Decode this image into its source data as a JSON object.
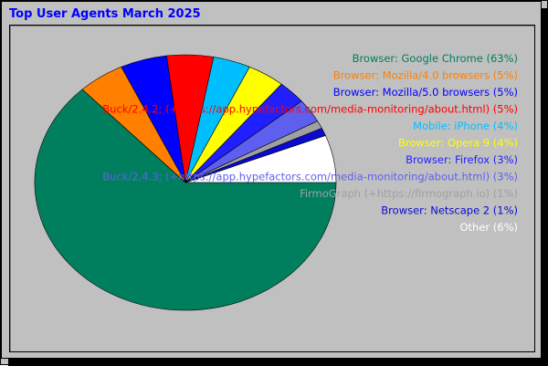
{
  "chart_data": {
    "type": "pie",
    "title": "Top User Agents March 2025",
    "slices": [
      {
        "label": "Browser: Google Chrome",
        "value": 63,
        "display": "Browser: Google Chrome (63%)",
        "color": "#007f5f"
      },
      {
        "label": "Browser: Mozilla/4.0 browsers",
        "value": 5,
        "display": "Browser: Mozilla/4.0 browsers (5%)",
        "color": "#ff7f00"
      },
      {
        "label": "Browser: Mozilla/5.0 browsers",
        "value": 5,
        "display": "Browser: Mozilla/5.0 browsers (5%)",
        "color": "#0000ff"
      },
      {
        "label": "Buck/2.4.2; (+https://app.hypefactors.com/media-monitoring/about.html)",
        "value": 5,
        "display": "Buck/2.4.2; (+https://app.hypefactors.com/media-monitoring/about.html) (5%)",
        "color": "#ff0000"
      },
      {
        "label": "Mobile: iPhone",
        "value": 4,
        "display": "Mobile: iPhone (4%)",
        "color": "#00bfff"
      },
      {
        "label": "Browser: Opera 9",
        "value": 4,
        "display": "Browser: Opera 9 (4%)",
        "color": "#ffff00"
      },
      {
        "label": "Browser: Firefox",
        "value": 3,
        "display": "Browser: Firefox (3%)",
        "color": "#1f1fff"
      },
      {
        "label": "Buck/2.4.3; (+https://app.hypefactors.com/media-monitoring/about.html)",
        "value": 3,
        "display": "Buck/2.4.3; (+https://app.hypefactors.com/media-monitoring/about.html) (3%)",
        "color": "#5f5fef"
      },
      {
        "label": "FirmoGraph (+https://firmograph.io)",
        "value": 1,
        "display": "FirmoGraph (+https://firmograph.io) (1%)",
        "color": "#a0a0a0"
      },
      {
        "label": "Browser: Netscape 2",
        "value": 1,
        "display": "Browser: Netscape 2 (1%)",
        "color": "#0a0ad0"
      },
      {
        "label": "Other",
        "value": 6,
        "display": "Other (6%)",
        "color": "#ffffff"
      }
    ],
    "legend_position": "right"
  }
}
